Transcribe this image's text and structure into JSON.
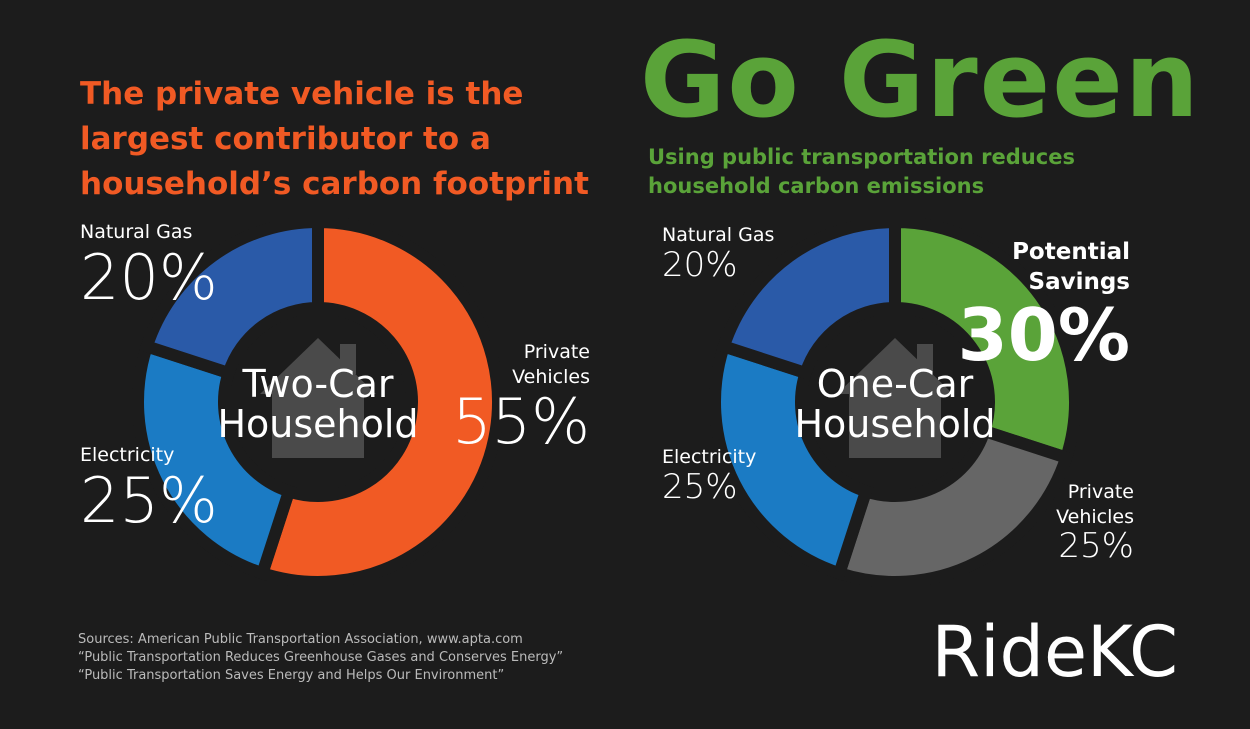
{
  "title": "The private vehicle is the largest contributor to a household’s carbon footprint",
  "headline": "Go Green",
  "subtitle": "Using public transportation reduces household carbon emissions",
  "sources": [
    "Sources: American Public Transportation Association, www.apta.com",
    "“Public Transportation Reduces Greenhouse Gases and Conserves Energy”",
    "“Public Transportation Saves Energy and Helps Our Environment”"
  ],
  "logo": "RideKC",
  "chart_data": [
    {
      "type": "pie",
      "center_label": "Two-Car Household",
      "categories": [
        "Private Vehicles",
        "Electricity",
        "Natural Gas"
      ],
      "values": [
        55,
        25,
        20
      ],
      "value_labels": [
        "55%",
        "25%",
        "20%"
      ],
      "colors": [
        "#f15a24",
        "#1b7bc4",
        "#2a5aa8"
      ]
    },
    {
      "type": "pie",
      "center_label": "One-Car Household",
      "categories": [
        "Potential Savings",
        "Private Vehicles",
        "Electricity",
        "Natural Gas"
      ],
      "values": [
        30,
        25,
        25,
        20
      ],
      "value_labels": [
        "30%",
        "25%",
        "25%",
        "20%"
      ],
      "colors": [
        "#5aa339",
        "#666666",
        "#1b7bc4",
        "#2a5aa8"
      ]
    }
  ]
}
